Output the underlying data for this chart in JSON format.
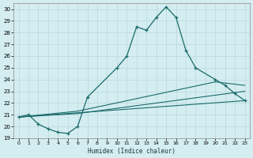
{
  "xlabel": "Humidex (Indice chaleur)",
  "background_color": "#d4edf0",
  "grid_color": "#b8d8da",
  "line_color": "#1a6b6b",
  "xlim": [
    -0.5,
    23.5
  ],
  "ylim": [
    19,
    30.5
  ],
  "yticks": [
    19,
    20,
    21,
    22,
    23,
    24,
    25,
    26,
    27,
    28,
    29,
    30
  ],
  "xticks": [
    0,
    1,
    2,
    3,
    4,
    5,
    6,
    7,
    8,
    9,
    10,
    11,
    12,
    13,
    14,
    15,
    16,
    17,
    18,
    19,
    20,
    21,
    22,
    23
  ],
  "main_x": [
    0,
    1,
    2,
    3,
    4,
    5,
    6,
    7,
    10,
    11,
    12,
    13,
    14,
    15,
    16,
    17,
    18,
    20,
    21,
    22,
    23
  ],
  "main_y": [
    20.8,
    21.0,
    20.2,
    19.8,
    19.5,
    19.4,
    20.0,
    22.5,
    25.0,
    26.0,
    28.5,
    28.2,
    29.3,
    30.2,
    29.3,
    26.5,
    25.0,
    24.0,
    23.5,
    22.8,
    22.2
  ],
  "line1_x": [
    0,
    23
  ],
  "line1_y": [
    20.8,
    22.2
  ],
  "line2_x": [
    0,
    6,
    23
  ],
  "line2_y": [
    20.8,
    21.1,
    23.0
  ],
  "line3_x": [
    0,
    6,
    20,
    23
  ],
  "line3_y": [
    20.8,
    21.3,
    23.8,
    23.5
  ]
}
